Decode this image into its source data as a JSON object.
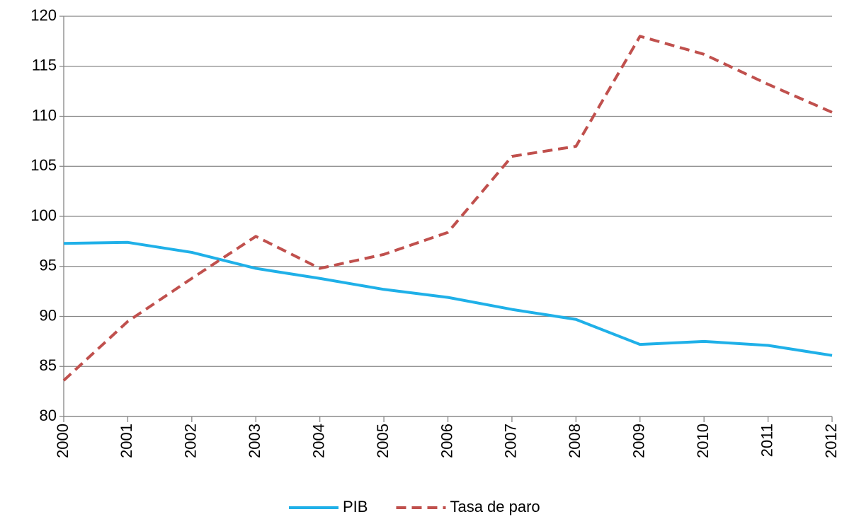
{
  "chart_data": {
    "type": "line",
    "categories": [
      "2000",
      "2001",
      "2002",
      "2003",
      "2004",
      "2005",
      "2006",
      "2007",
      "2008",
      "2009",
      "2010",
      "2011",
      "2012"
    ],
    "series": [
      {
        "name": "PIB",
        "color": "#1fb0e8",
        "dash": false,
        "values": [
          97.3,
          97.4,
          96.4,
          94.8,
          93.8,
          92.7,
          91.9,
          90.7,
          89.7,
          87.2,
          87.5,
          87.1,
          86.1
        ]
      },
      {
        "name": "Tasa de paro",
        "color": "#c0504d",
        "dash": true,
        "values": [
          83.6,
          89.5,
          93.8,
          98.0,
          94.8,
          96.2,
          98.4,
          106.0,
          107.0,
          118.0,
          116.2,
          113.2,
          110.4
        ]
      }
    ],
    "ylim": [
      80,
      120
    ],
    "yticks": [
      80,
      85,
      90,
      95,
      100,
      105,
      110,
      115,
      120
    ],
    "grid": true,
    "legend": "bottom"
  }
}
